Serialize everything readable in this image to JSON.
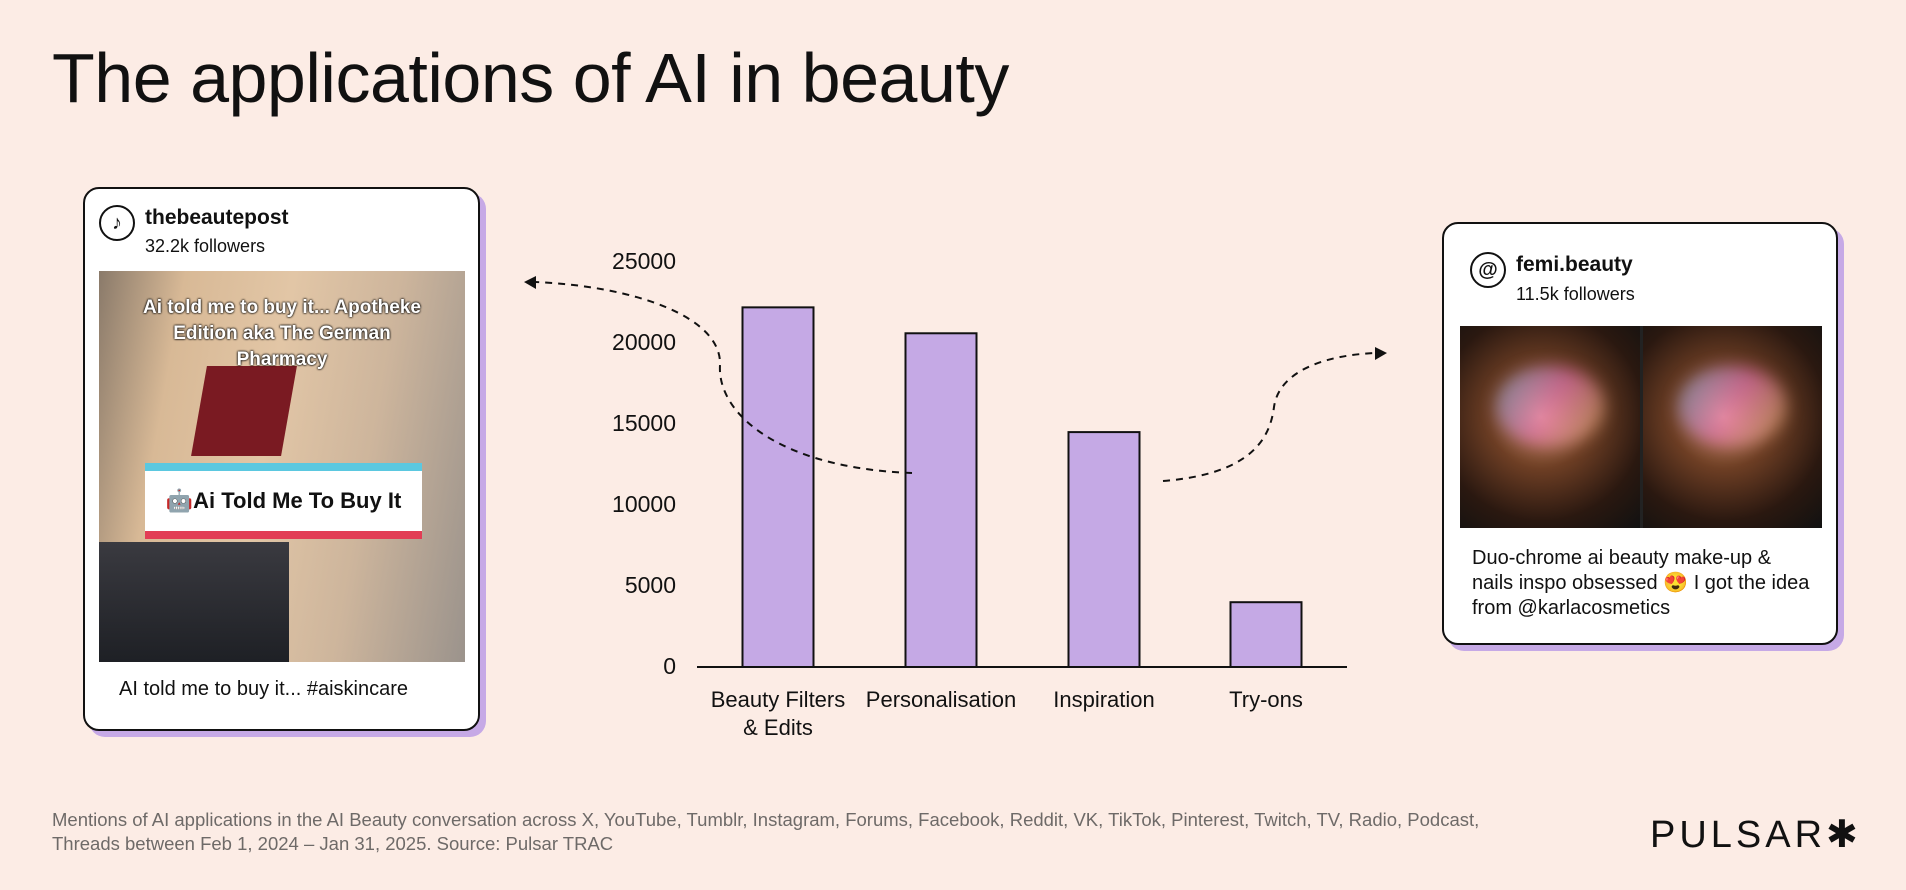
{
  "title": "The applications of AI in beauty",
  "posts": [
    {
      "platform_icon": "tiktok-icon",
      "username": "thebeautepost",
      "followers": "32.2k followers",
      "image_overlay_text": "Ai told me to buy it... Apotheke Edition aka The German Pharmacy",
      "image_sign_text": "🤖Ai Told Me To Buy It",
      "caption": "AI told me to buy it... #aiskincare"
    },
    {
      "platform_icon": "threads-icon",
      "username": "femi.beauty",
      "followers": "11.5k followers",
      "caption": "Duo-chrome ai beauty make-up & nails inspo obsessed 😍 I got the idea from @karlacosmetics"
    }
  ],
  "chart_data": {
    "type": "bar",
    "categories": [
      "Beauty Filters & Edits",
      "Personalisation",
      "Inspiration",
      "Try-ons"
    ],
    "category_lines": [
      [
        "Beauty Filters",
        "& Edits"
      ],
      [
        "Personalisation"
      ],
      [
        "Inspiration"
      ],
      [
        "Try-ons"
      ]
    ],
    "values": [
      22200,
      20600,
      14500,
      4000
    ],
    "yticks": [
      "0",
      "5000",
      "10000",
      "15000",
      "20000",
      "25000"
    ],
    "ylim": [
      0,
      25000
    ],
    "grid": false,
    "bar_color": "#c5a9e5",
    "bar_edge_color": "#111111"
  },
  "footer": {
    "note": "Mentions of AI applications in the AI Beauty conversation across X, YouTube, Tumblr, Instagram, Forums, Facebook, Reddit, VK, TikTok, Pinterest, Twitch, TV, Radio, Podcast, Threads between Feb 1, 2024 – Jan 31, 2025. Source: Pulsar TRAC",
    "logo": "PULSAR✱"
  },
  "colors": {
    "background": "#fcece5",
    "accent": "#c5a9e5"
  }
}
